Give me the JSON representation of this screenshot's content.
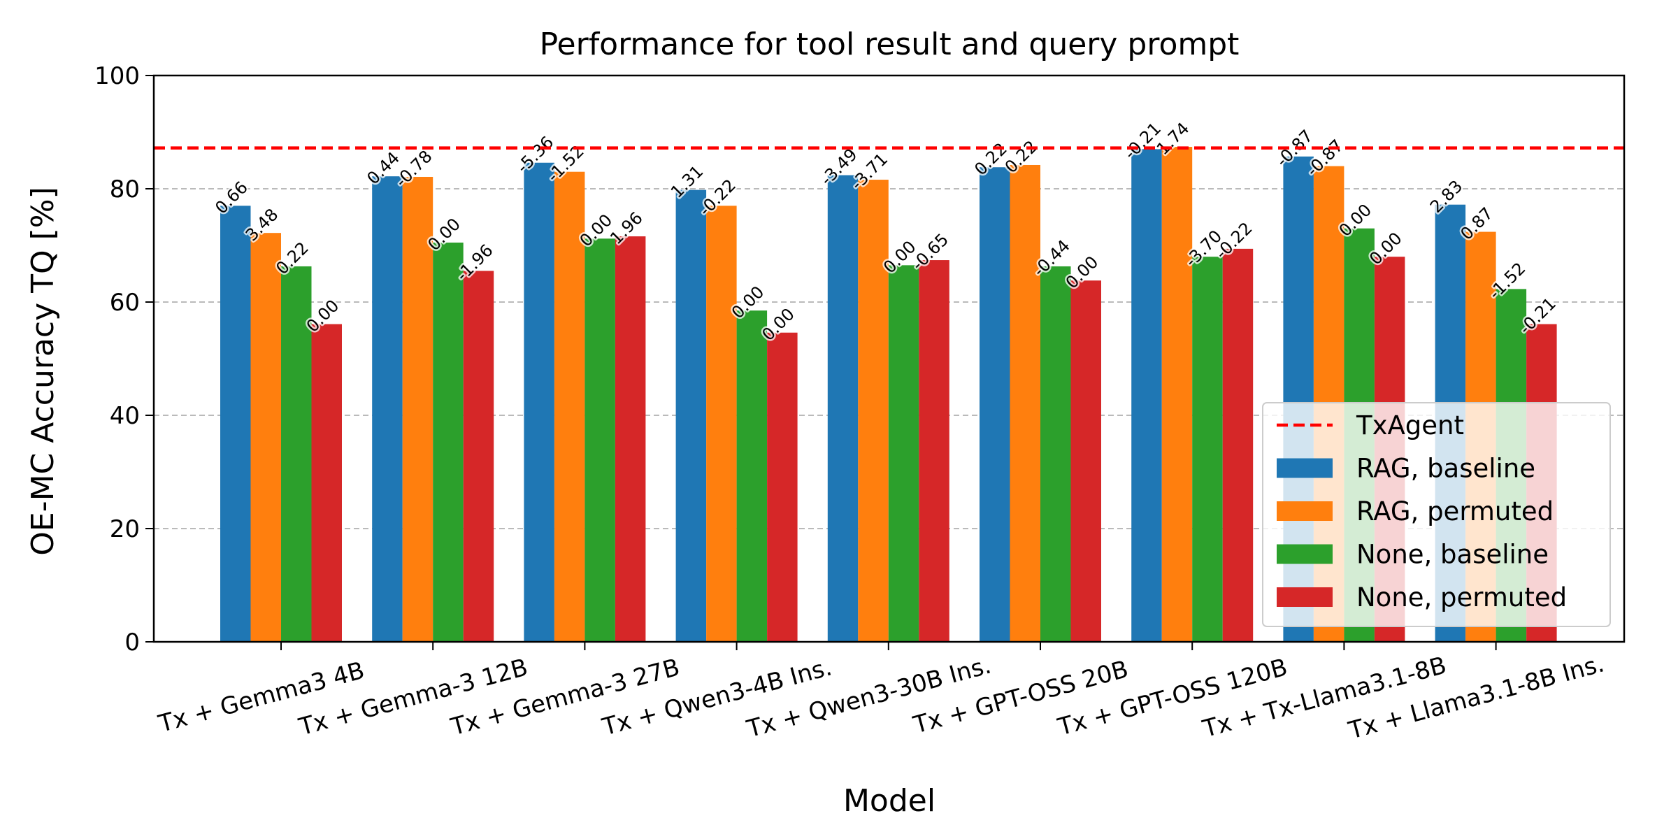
{
  "chart_data": {
    "type": "bar",
    "title": "Performance for tool result and query prompt",
    "xlabel": "Model",
    "ylabel": "OE-MC Accuracy TQ [%]",
    "ylim": [
      0,
      100
    ],
    "yticks": [
      0,
      20,
      40,
      60,
      80,
      100
    ],
    "grid": "y-dashed",
    "legend_position": "lower-right",
    "categories": [
      "Tx + Gemma3 4B",
      "Tx + Gemma-3 12B",
      "Tx + Gemma-3 27B",
      "Tx + Qwen3-4B Ins.",
      "Tx + Qwen3-30B Ins.",
      "Tx + GPT-OSS 20B",
      "Tx + GPT-OSS 120B",
      "Tx + Tx-Llama3.1-8B",
      "Tx + Llama3.1-8B Ins."
    ],
    "reference_line": {
      "name": "TxAgent",
      "value": 87.2,
      "color": "#ff0000"
    },
    "series": [
      {
        "name": "RAG, baseline",
        "color": "#1f77b4",
        "values": [
          77.0,
          82.2,
          84.6,
          79.8,
          82.4,
          83.8,
          87.0,
          85.7,
          77.2
        ],
        "labels": [
          "0.66",
          "0.44",
          "-5.36",
          "1.31",
          "-3.49",
          "0.22",
          "-0.21",
          "-0.87",
          "2.83"
        ]
      },
      {
        "name": "RAG, permuted",
        "color": "#ff7f0e",
        "values": [
          72.2,
          82.1,
          83.0,
          77.0,
          81.6,
          84.2,
          87.4,
          84.0,
          72.4
        ],
        "labels": [
          "3.48",
          "-0.78",
          "-1.52",
          "-0.22",
          "-3.71",
          "0.22",
          "1.74",
          "-0.87",
          "0.87"
        ]
      },
      {
        "name": "None, baseline",
        "color": "#2ca02c",
        "values": [
          66.3,
          70.5,
          71.2,
          58.5,
          66.5,
          66.3,
          68.0,
          73.0,
          62.3
        ],
        "labels": [
          "0.22",
          "0.00",
          "0.00",
          "0.00",
          "0.00",
          "-0.44",
          "-3.70",
          "0.00",
          "-1.52"
        ]
      },
      {
        "name": "None, permuted",
        "color": "#d62728",
        "values": [
          56.1,
          65.5,
          71.6,
          54.6,
          67.4,
          63.8,
          69.4,
          68.0,
          56.1
        ],
        "labels": [
          "0.00",
          "-1.96",
          "1.96",
          "0.00",
          "-0.65",
          "0.00",
          "-0.22",
          "0.00",
          "-0.21"
        ]
      }
    ]
  }
}
